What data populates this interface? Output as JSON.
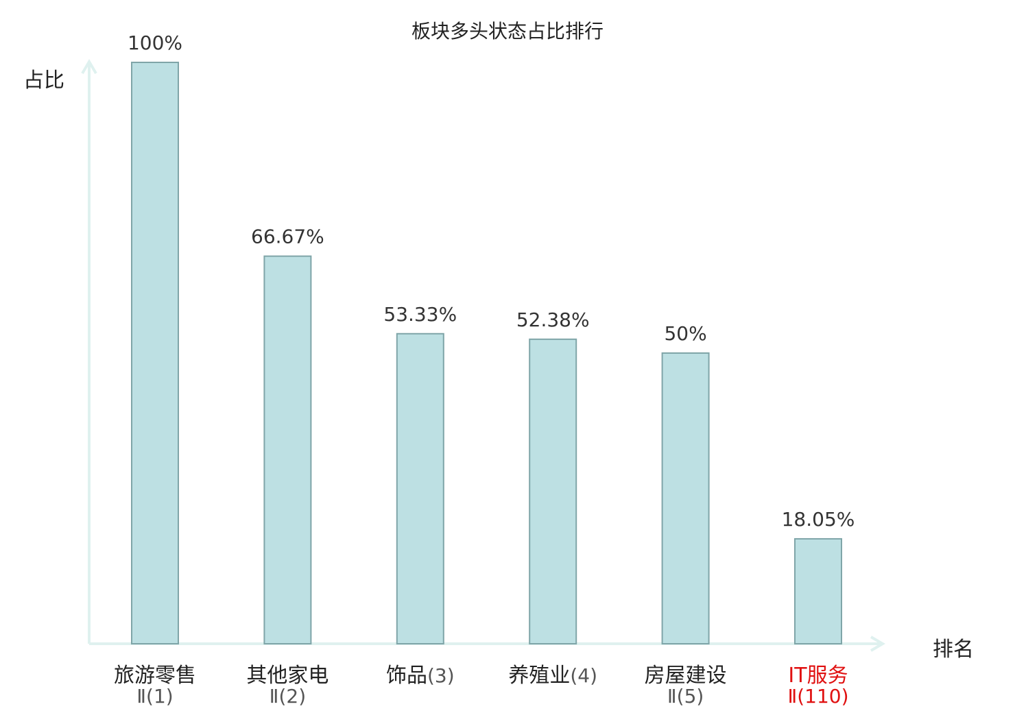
{
  "chart_data": {
    "type": "bar",
    "title": "板块多头状态占比排行",
    "ylabel": "占比",
    "xlabel": "排名",
    "ylim": [
      0,
      100
    ],
    "grid": false,
    "categories": [
      {
        "name": "旅游零售",
        "rank": "Ⅱ(1)",
        "highlight": false
      },
      {
        "name": "其他家电",
        "rank": "Ⅱ(2)",
        "highlight": false
      },
      {
        "name": "饰品",
        "rank": "(3)",
        "highlight": false
      },
      {
        "name": "养殖业",
        "rank": "(4)",
        "highlight": false
      },
      {
        "name": "房屋建设",
        "rank": "Ⅱ(5)",
        "highlight": false
      },
      {
        "name": "IT服务",
        "rank": "Ⅱ(110)",
        "highlight": true
      }
    ],
    "values": [
      100,
      66.67,
      53.33,
      52.38,
      50,
      18.05
    ],
    "value_labels": [
      "100%",
      "66.67%",
      "53.33%",
      "52.38%",
      "50%",
      "18.05%"
    ]
  },
  "colors": {
    "bar_fill": "#bde0e3",
    "bar_stroke": "#7fa5a8",
    "axis": "#dff1ef",
    "text": "#222222",
    "value_text": "#333333",
    "rank_text": "#555555",
    "highlight": "#e01010"
  }
}
